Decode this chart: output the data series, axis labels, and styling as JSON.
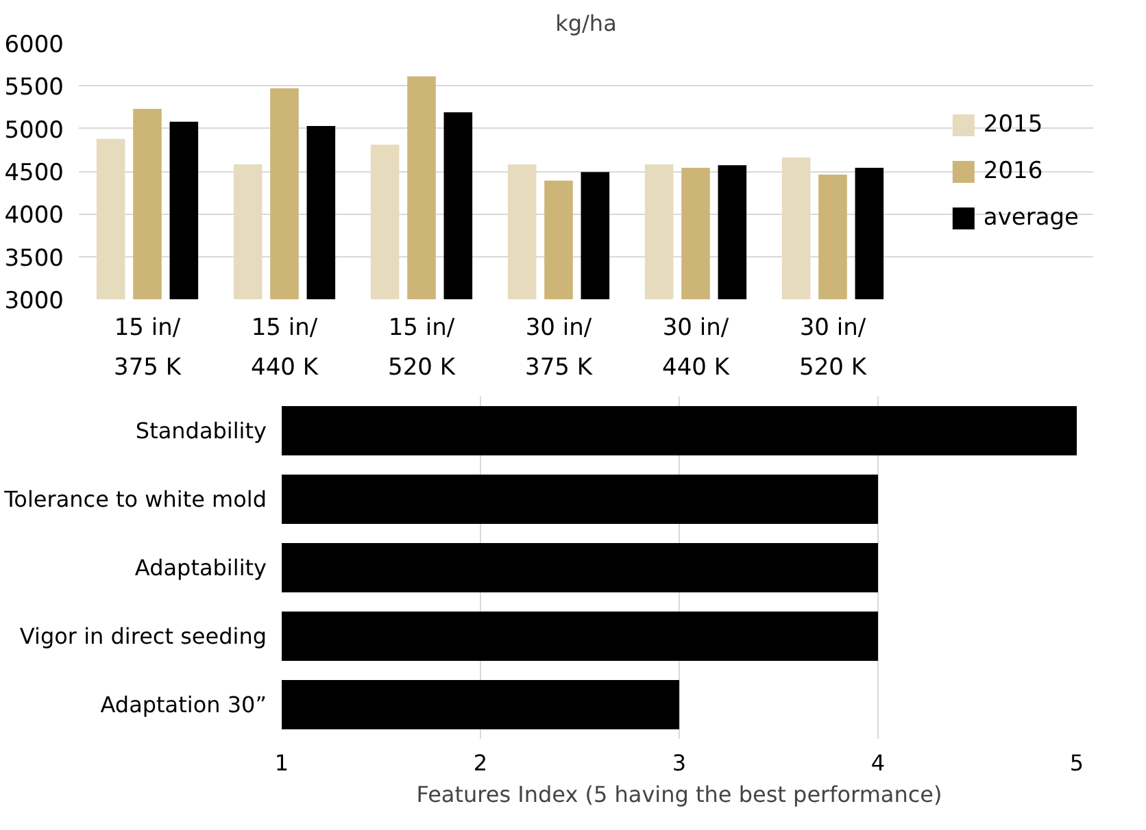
{
  "chart_data": [
    {
      "type": "bar",
      "title": "kg/ha",
      "categories": [
        "15 in/\n375 K",
        "15 in/\n440 K",
        "15 in/\n520 K",
        "30 in/\n375 K",
        "30 in/\n440 K",
        "30 in/\n520 K"
      ],
      "series": [
        {
          "name": "2015",
          "color": "#e6dbbd",
          "values": [
            4880,
            4580,
            4810,
            4580,
            4580,
            4660
          ]
        },
        {
          "name": "2016",
          "color": "#ccb576",
          "values": [
            5230,
            5470,
            5610,
            4390,
            4540,
            4460
          ]
        },
        {
          "name": "average",
          "color": "#000000",
          "values": [
            5080,
            5030,
            5190,
            4490,
            4570,
            4540
          ]
        }
      ],
      "ylim": [
        3000,
        6000
      ],
      "yticks": [
        3000,
        3500,
        4000,
        4500,
        5000,
        5500,
        6000
      ],
      "grid": "y",
      "legend": "right"
    },
    {
      "type": "bar",
      "orientation": "horizontal",
      "xlabel": "Features Index (5 having the best performance)",
      "categories": [
        "Standability",
        "Tolerance to white mold",
        "Adaptability",
        "Vigor in direct seeding",
        "Adaptation 30”"
      ],
      "values": [
        5,
        4,
        4,
        4,
        3
      ],
      "color": "#000000",
      "xlim": [
        1,
        5
      ],
      "xticks": [
        1,
        2,
        3,
        4,
        5
      ],
      "grid": "x"
    }
  ]
}
